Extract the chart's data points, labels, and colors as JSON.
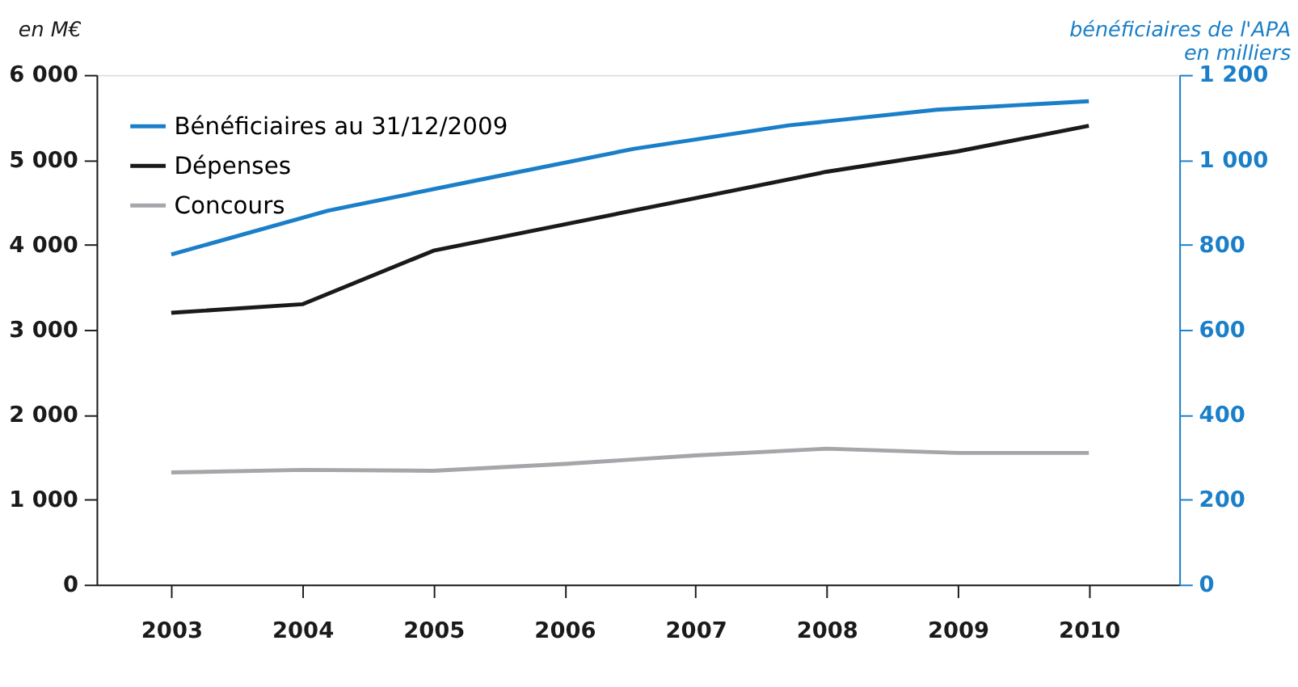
{
  "chart_data": {
    "type": "line",
    "ylabel": "en M€",
    "y2label": "bénéficiaires de l'APA\nen milliers",
    "xlim": [
      2002.43,
      2010.69
    ],
    "xticks": [
      2003,
      2004,
      2005,
      2006,
      2007,
      2008,
      2009,
      2010
    ],
    "ylim": [
      0,
      6000
    ],
    "yticks": [
      {
        "value": 0,
        "label": "0"
      },
      {
        "value": 1000,
        "label": "1 000"
      },
      {
        "value": 2000,
        "label": "2 000"
      },
      {
        "value": 3000,
        "label": "3 000"
      },
      {
        "value": 4000,
        "label": "4 000"
      },
      {
        "value": 5000,
        "label": "5 000"
      },
      {
        "value": 6000,
        "label": "6 000"
      }
    ],
    "y2lim": [
      0,
      1200
    ],
    "y2ticks": [
      {
        "value": 0,
        "label": "0"
      },
      {
        "value": 200,
        "label": "200"
      },
      {
        "value": 400,
        "label": "400"
      },
      {
        "value": 600,
        "label": "600"
      },
      {
        "value": 800,
        "label": "800"
      },
      {
        "value": 1000,
        "label": "1 000"
      },
      {
        "value": 1200,
        "label": "1 200"
      }
    ],
    "grid": false,
    "legend": "top left",
    "marker": "none",
    "line_style": "solid",
    "series": [
      {
        "name": "Bénéficiaires au 31/12/2009",
        "color": "#1a7fc8",
        "axis": "y2",
        "x": [
          2003,
          2004.19,
          2005.32,
          2006.53,
          2007.71,
          2008.84,
          2010
        ],
        "values": [
          777,
          880,
          951,
          1026,
          1081,
          1118,
          1138
        ]
      },
      {
        "name": "Dépenses",
        "color": "#1a1a1a",
        "x": [
          2003,
          2004,
          2005,
          2006,
          2007,
          2008,
          2009,
          2010
        ],
        "values": [
          3200,
          3300,
          3930,
          4240,
          4550,
          4860,
          5100,
          5400
        ]
      },
      {
        "name": "Concours",
        "color": "#a6a6aa",
        "x": [
          2003,
          2004,
          2005,
          2006,
          2007,
          2008,
          2009,
          2010
        ],
        "values": [
          1320,
          1350,
          1340,
          1420,
          1520,
          1600,
          1550,
          1550
        ]
      }
    ]
  }
}
